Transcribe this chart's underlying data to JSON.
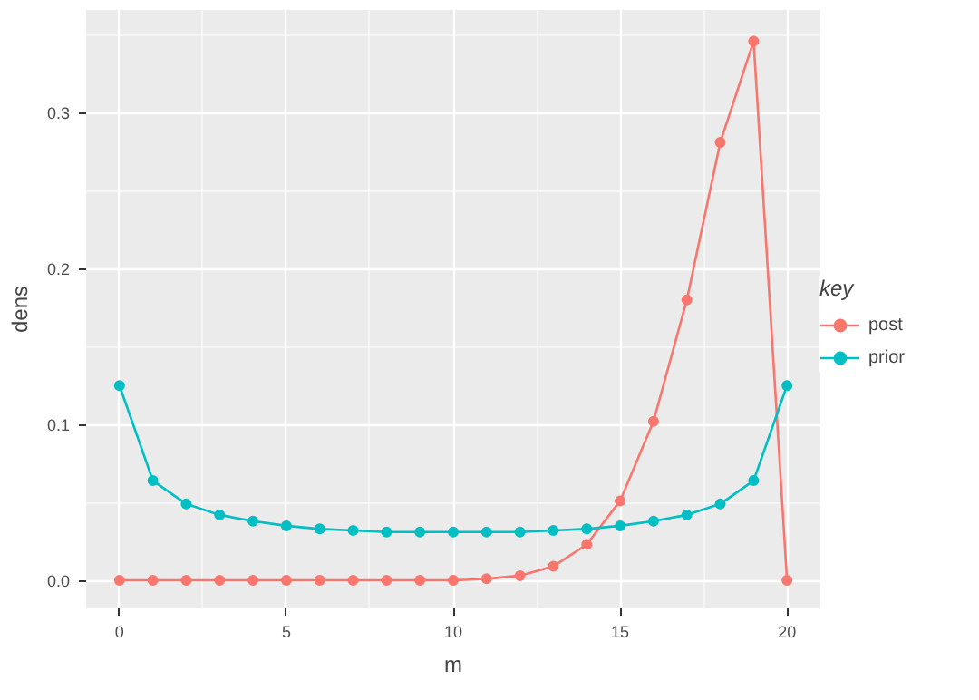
{
  "chart_data": {
    "type": "line",
    "xlabel": "m",
    "ylabel": "dens",
    "legend_title": "key",
    "legend": "right",
    "grid": true,
    "marker": "circle",
    "line_style": "solid",
    "x": [
      0,
      1,
      2,
      3,
      4,
      5,
      6,
      7,
      8,
      9,
      10,
      11,
      12,
      13,
      14,
      15,
      16,
      17,
      18,
      19,
      20
    ],
    "xlim": [
      -1,
      21
    ],
    "xticks": [
      0,
      5,
      10,
      15,
      20
    ],
    "ylim": [
      -0.018,
      0.366
    ],
    "yticks": [
      {
        "value": 0,
        "label": "0.0"
      },
      {
        "value": 0.1,
        "label": "0.1"
      },
      {
        "value": 0.2,
        "label": "0.2"
      },
      {
        "value": 0.3,
        "label": "0.3"
      }
    ],
    "series": [
      {
        "name": "post",
        "color": "#f8766d",
        "values": [
          0,
          0,
          0,
          0,
          0,
          0,
          0,
          0,
          0,
          0,
          0,
          0.001,
          0.003,
          0.009,
          0.023,
          0.051,
          0.102,
          0.18,
          0.281,
          0.346,
          0
        ]
      },
      {
        "name": "prior",
        "color": "#00bfc4",
        "values": [
          0.125,
          0.064,
          0.049,
          0.042,
          0.038,
          0.035,
          0.033,
          0.032,
          0.031,
          0.031,
          0.031,
          0.031,
          0.031,
          0.032,
          0.033,
          0.035,
          0.038,
          0.042,
          0.049,
          0.064,
          0.125
        ]
      }
    ]
  }
}
